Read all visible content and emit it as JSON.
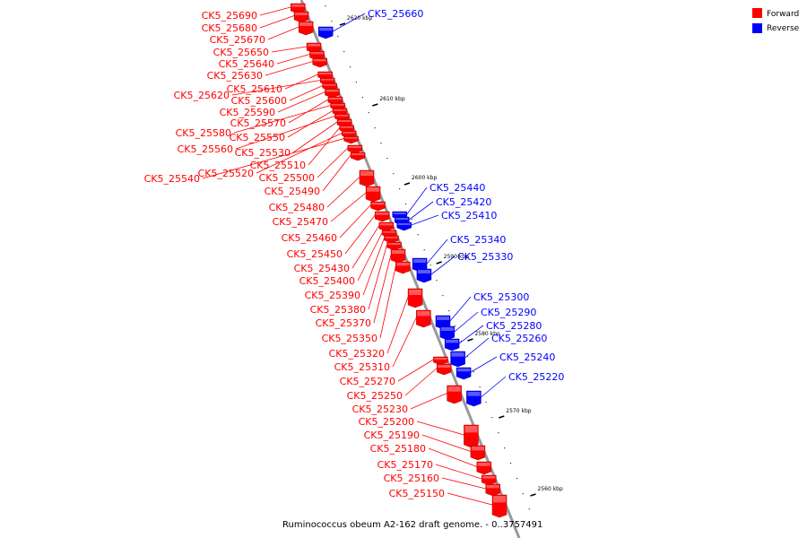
{
  "caption": "Ruminococcus obeum A2-162 draft genome. - 0..3757491",
  "legend": [
    {
      "label": "Forward",
      "color": "#ff0000"
    },
    {
      "label": "Reverse",
      "color": "#0000ff"
    }
  ],
  "colors": {
    "forward": "#ff0000",
    "reverse": "#0000ff",
    "backbone": "#999999"
  },
  "kbp_markers": [
    "2620 kbp",
    "2610 kbp",
    "2600 kbp",
    "2590 kbp",
    "2580 kbp",
    "2570 kbp",
    "2560 kbp"
  ],
  "forward_genes": [
    "CK5_25690",
    "CK5_25680",
    "CK5_25670",
    "CK5_25650",
    "CK5_25640",
    "CK5_25630",
    "CK5_25610",
    "CK5_25620",
    "CK5_25600",
    "CK5_25590",
    "CK5_25570",
    "CK5_25580",
    "CK5_25550",
    "CK5_25560",
    "CK5_25530",
    "CK5_25510",
    "CK5_25520",
    "CK5_25540",
    "CK5_25500",
    "CK5_25490",
    "CK5_25480",
    "CK5_25470",
    "CK5_25460",
    "CK5_25450",
    "CK5_25430",
    "CK5_25400",
    "CK5_25390",
    "CK5_25380",
    "CK5_25370",
    "CK5_25350",
    "CK5_25320",
    "CK5_25310",
    "CK5_25270",
    "CK5_25250",
    "CK5_25230",
    "CK5_25200",
    "CK5_25190",
    "CK5_25180",
    "CK5_25170",
    "CK5_25160",
    "CK5_25150"
  ],
  "reverse_genes": [
    "CK5_25660",
    "CK5_25440",
    "CK5_25420",
    "CK5_25410",
    "CK5_25340",
    "CK5_25330",
    "CK5_25300",
    "CK5_25290",
    "CK5_25280",
    "CK5_25260",
    "CK5_25240",
    "CK5_25220"
  ]
}
